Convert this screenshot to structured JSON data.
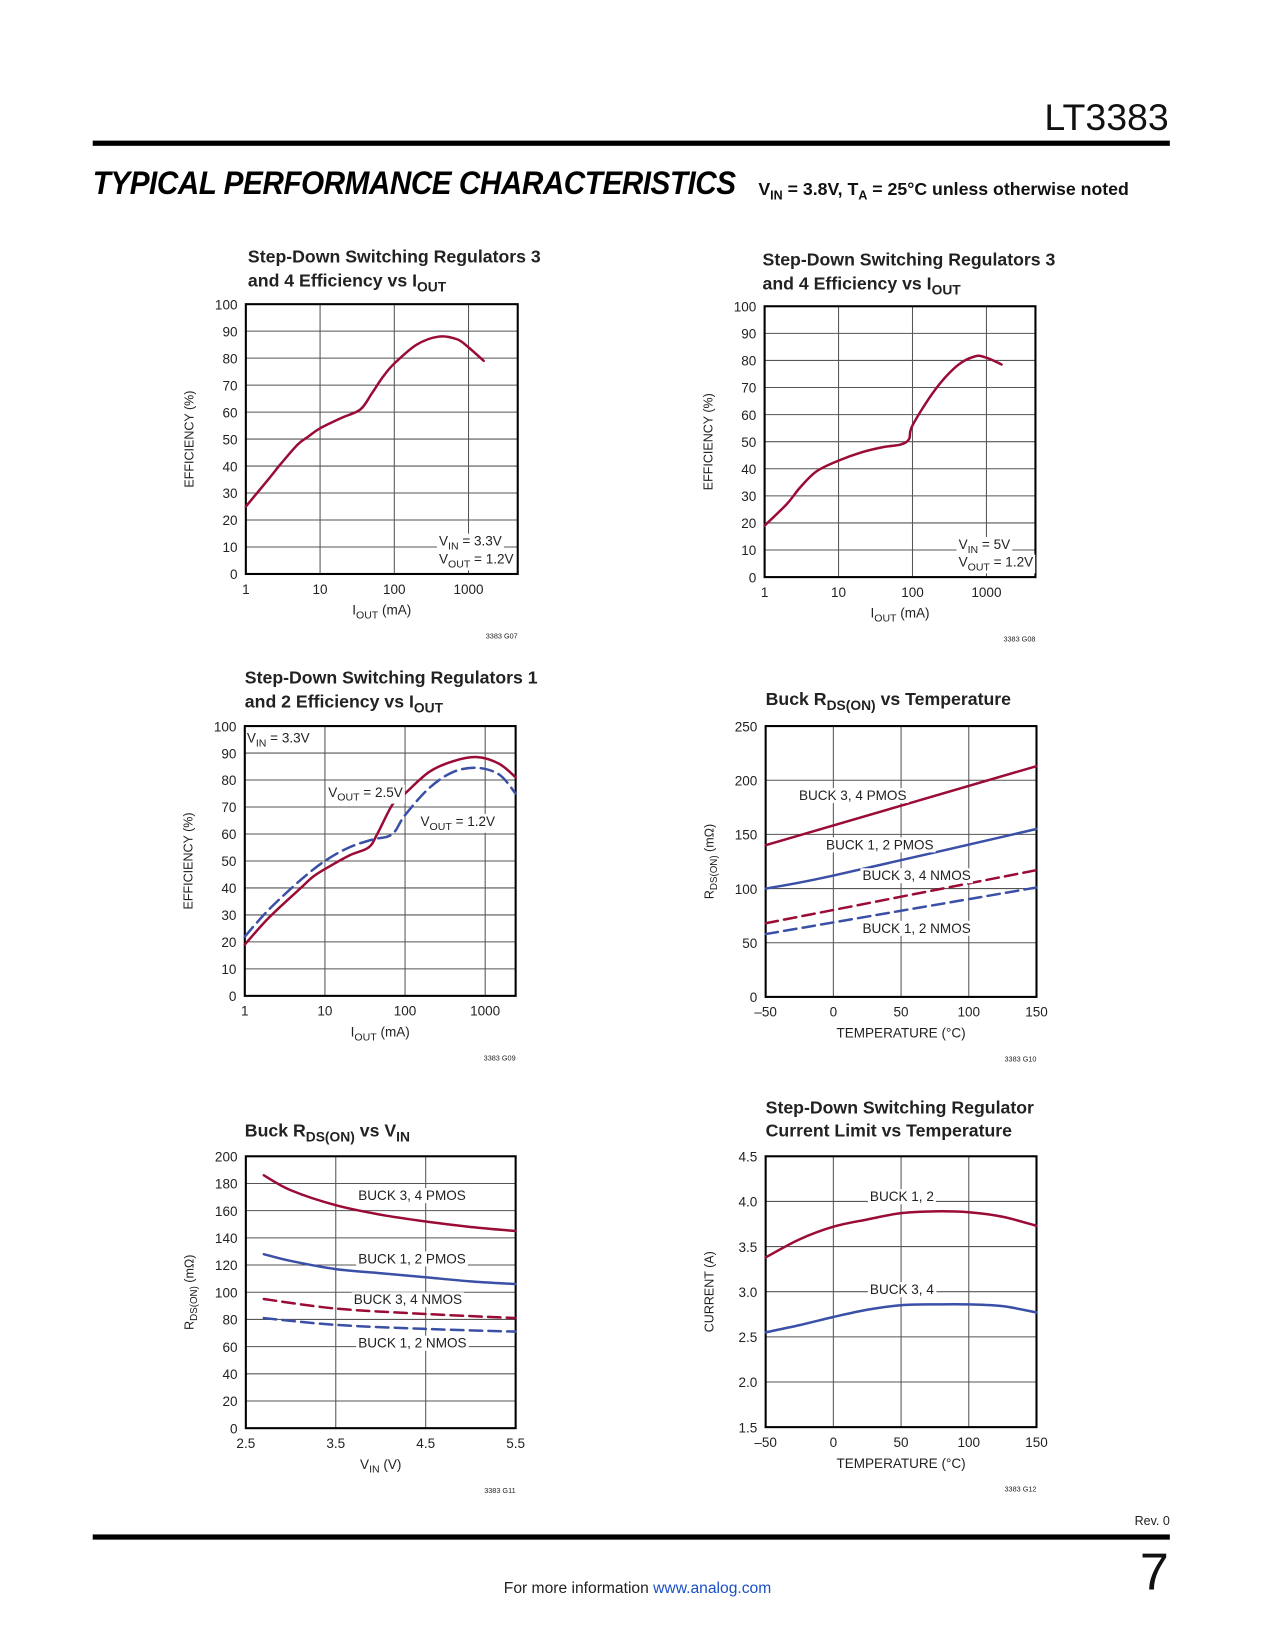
{
  "header": {
    "part_number": "LT3383",
    "section_title": "TYPICAL PERFORMANCE CHARACTERISTICS",
    "conditions": [
      [
        "V",
        "IN",
        " = 3.8V, T",
        "A",
        " = 25°C unless otherwise noted"
      ]
    ]
  },
  "footer": {
    "revision": "Rev. 0",
    "page_number": "7",
    "more_info": "For more information ",
    "link": "www.analog.com"
  },
  "colors": {
    "red": "#9a0b35",
    "blue": "#3a4fa6",
    "grid": "#555555"
  },
  "chart_data": [
    {
      "type": "line",
      "id": "3383 G07",
      "title": [
        [
          "Step-Down Switching Regulators 3"
        ],
        [
          "and 4 Efficiency vs I",
          "OUT"
        ]
      ],
      "xlabel": [
        "I",
        "OUT",
        " (mA)"
      ],
      "ylabel": [
        "EFFICIENCY (%)"
      ],
      "xscale": "log",
      "xlim": [
        1,
        4600
      ],
      "ylim": [
        0,
        100
      ],
      "xticks": [
        1,
        10,
        100,
        1000
      ],
      "yticks": [
        0,
        10,
        20,
        30,
        40,
        50,
        60,
        70,
        80,
        90,
        100
      ],
      "grid": true,
      "series": [
        {
          "name": "VOUT = 1.2V",
          "color": "red",
          "dash": false,
          "x": [
            1,
            2,
            3,
            5,
            7,
            10,
            20,
            35,
            50,
            70,
            100,
            200,
            400,
            700,
            1000,
            1600
          ],
          "y": [
            25,
            35,
            41,
            48,
            51,
            54,
            58,
            61,
            67,
            73,
            78,
            85,
            88,
            87,
            84,
            79
          ]
        }
      ],
      "annotations": [
        {
          "segs": [
            "V",
            "IN",
            " = 3.3V"
          ],
          "x": 400,
          "y": 12.4,
          "box": true
        },
        {
          "segs": [
            "V",
            "OUT",
            " = 1.2V"
          ],
          "x": 400,
          "y": 5.8,
          "box": true
        }
      ]
    },
    {
      "type": "line",
      "id": "3383 G08",
      "title": [
        [
          "Step-Down Switching Regulators 3"
        ],
        [
          "and 4 Efficiency vs I",
          "OUT"
        ]
      ],
      "xlabel": [
        "I",
        "OUT",
        " (mA)"
      ],
      "ylabel": [
        "EFFICIENCY (%)"
      ],
      "xscale": "log",
      "xlim": [
        1,
        4600
      ],
      "ylim": [
        0,
        100
      ],
      "xticks": [
        1,
        10,
        100,
        1000
      ],
      "yticks": [
        0,
        10,
        20,
        30,
        40,
        50,
        60,
        70,
        80,
        90,
        100
      ],
      "grid": true,
      "series": [
        {
          "name": "VOUT = 1.2V",
          "color": "red",
          "dash": false,
          "x": [
            1,
            2,
            3,
            5,
            10,
            20,
            40,
            70,
            90,
            100,
            200,
            400,
            700,
            1000,
            1600
          ],
          "y": [
            19,
            27,
            33,
            39,
            43,
            46,
            48,
            49,
            51,
            56,
            69,
            78,
            81.5,
            81,
            78.5
          ]
        }
      ],
      "annotations": [
        {
          "segs": [
            "V",
            "IN",
            " = 5V"
          ],
          "x": 420,
          "y": 12.3,
          "box": true
        },
        {
          "segs": [
            "V",
            "OUT",
            " = 1.2V"
          ],
          "x": 420,
          "y": 5.8,
          "box": true
        }
      ]
    },
    {
      "type": "line",
      "id": "3383 G09",
      "title": [
        [
          "Step-Down Switching Regulators 1"
        ],
        [
          "and 2 Efficiency vs I",
          "OUT"
        ]
      ],
      "xlabel": [
        "I",
        "OUT",
        " (mA)"
      ],
      "ylabel": [
        "EFFICIENCY (%)"
      ],
      "xscale": "log",
      "xlim": [
        1,
        2400
      ],
      "ylim": [
        0,
        100
      ],
      "xticks": [
        1,
        10,
        100,
        1000
      ],
      "yticks": [
        0,
        10,
        20,
        30,
        40,
        50,
        60,
        70,
        80,
        90,
        100
      ],
      "grid": true,
      "series": [
        {
          "name": "VOUT = 2.5V",
          "color": "red",
          "dash": false,
          "x": [
            1,
            2,
            5,
            7,
            10,
            20,
            35,
            45,
            70,
            100,
            200,
            400,
            800,
            1500,
            2400
          ],
          "y": [
            19,
            29,
            40,
            44,
            47,
            52,
            55,
            60,
            71,
            75,
            83,
            87,
            88.5,
            86,
            81
          ]
        },
        {
          "name": "VOUT = 1.2V",
          "color": "blue",
          "dash": true,
          "x": [
            1,
            2,
            5,
            10,
            20,
            40,
            60,
            75,
            100,
            200,
            400,
            800,
            1500,
            2400
          ],
          "y": [
            22,
            32,
            43,
            50,
            55,
            58,
            59,
            61,
            67,
            77,
            83,
            84.5,
            82,
            75
          ]
        }
      ],
      "annotations": [
        {
          "segs": [
            "V",
            "IN",
            " = 3.3V"
          ],
          "x": 1.06,
          "y": 95.8,
          "box": false
        },
        {
          "segs": [
            "V",
            "OUT",
            " = 2.5V"
          ],
          "x": 11,
          "y": 75.7,
          "box": true
        },
        {
          "segs": [
            "V",
            "OUT",
            " = 1.2V"
          ],
          "x": 156,
          "y": 64.9,
          "box": true
        }
      ]
    },
    {
      "type": "line",
      "id": "3383 G10",
      "title": [
        [
          "Buck R",
          "DS(ON)",
          " vs Temperature"
        ]
      ],
      "xlabel": [
        "TEMPERATURE (°C)"
      ],
      "ylabel": [
        "R",
        "DS(ON)",
        " (mΩ)"
      ],
      "xscale": "linear",
      "xlim": [
        -50,
        150
      ],
      "ylim": [
        0,
        250
      ],
      "xticks": [
        -50,
        0,
        50,
        100,
        150
      ],
      "xtick_labels": [
        "–50",
        "0",
        "50",
        "100",
        "150"
      ],
      "yticks": [
        0,
        50,
        100,
        150,
        200,
        250
      ],
      "grid": true,
      "series": [
        {
          "name": "BUCK 3, 4 PMOS",
          "color": "red",
          "dash": false,
          "x": [
            -50,
            150
          ],
          "y": [
            140,
            213
          ]
        },
        {
          "name": "BUCK 1, 2 PMOS",
          "color": "blue",
          "dash": false,
          "x": [
            -50,
            0,
            150
          ],
          "y": [
            100,
            112,
            155
          ]
        },
        {
          "name": "BUCK 3, 4 NMOS",
          "color": "red",
          "dash": true,
          "x": [
            -50,
            150
          ],
          "y": [
            68,
            117
          ]
        },
        {
          "name": "BUCK 1, 2 NMOS",
          "color": "blue",
          "dash": true,
          "x": [
            -50,
            150
          ],
          "y": [
            58,
            101
          ]
        }
      ],
      "annotations": [
        {
          "segs": [
            "BUCK 3, 4 PMOS"
          ],
          "x": -25.4,
          "y": 186.5,
          "box": true
        },
        {
          "segs": [
            "BUCK 1, 2 PMOS"
          ],
          "x": -5.4,
          "y": 141,
          "box": true
        },
        {
          "segs": [
            "BUCK 3, 4 NMOS"
          ],
          "x": 21.5,
          "y": 112.5,
          "box": true
        },
        {
          "segs": [
            "BUCK 1, 2 NMOS"
          ],
          "x": 21.5,
          "y": 64,
          "box": true
        }
      ]
    },
    {
      "type": "line",
      "id": "3383 G11",
      "title": [
        [
          "Buck R",
          "DS(ON)",
          " vs V",
          "IN"
        ]
      ],
      "xlabel": [
        "V",
        "IN",
        " (V)"
      ],
      "ylabel": [
        "R",
        "DS(ON)",
        " (mΩ)"
      ],
      "xscale": "linear",
      "xlim": [
        2.5,
        5.5
      ],
      "ylim": [
        0,
        200
      ],
      "xticks": [
        2.5,
        3.5,
        4.5,
        5.5
      ],
      "yticks": [
        0,
        20,
        40,
        60,
        80,
        100,
        120,
        140,
        160,
        180,
        200
      ],
      "grid": true,
      "series": [
        {
          "name": "BUCK 3, 4 PMOS",
          "color": "red",
          "dash": false,
          "x": [
            2.7,
            3.0,
            3.5,
            4.0,
            4.5,
            5.0,
            5.5
          ],
          "y": [
            186,
            175,
            164,
            157,
            152,
            148,
            145
          ]
        },
        {
          "name": "BUCK 1, 2 PMOS",
          "color": "blue",
          "dash": false,
          "x": [
            2.7,
            3.0,
            3.5,
            4.0,
            4.5,
            5.0,
            5.5
          ],
          "y": [
            128,
            123,
            117,
            114,
            111,
            108,
            106
          ]
        },
        {
          "name": "BUCK 3, 4 NMOS",
          "color": "red",
          "dash": true,
          "x": [
            2.7,
            3.5,
            4.5,
            5.5
          ],
          "y": [
            95,
            88,
            84,
            81
          ]
        },
        {
          "name": "BUCK 1, 2 NMOS",
          "color": "blue",
          "dash": true,
          "x": [
            2.7,
            3.5,
            4.5,
            5.5
          ],
          "y": [
            81,
            76,
            73,
            71
          ]
        }
      ],
      "annotations": [
        {
          "segs": [
            "BUCK 3, 4 PMOS"
          ],
          "x": 3.75,
          "y": 171.6,
          "box": true
        },
        {
          "segs": [
            "BUCK 1, 2 PMOS"
          ],
          "x": 3.75,
          "y": 125,
          "box": true
        },
        {
          "segs": [
            "BUCK 3, 4 NMOS"
          ],
          "x": 3.7,
          "y": 95,
          "box": true
        },
        {
          "segs": [
            "BUCK 1, 2 NMOS"
          ],
          "x": 3.75,
          "y": 63,
          "box": true
        }
      ]
    },
    {
      "type": "line",
      "id": "3383 G12",
      "title": [
        [
          "Step-Down Switching Regulator"
        ],
        [
          "Current Limit vs Temperature"
        ]
      ],
      "xlabel": [
        "TEMPERATURE (°C)"
      ],
      "ylabel": [
        "CURRENT (A)"
      ],
      "xscale": "linear",
      "xlim": [
        -50,
        150
      ],
      "ylim": [
        1.5,
        4.5
      ],
      "xticks": [
        -50,
        0,
        50,
        100,
        150
      ],
      "xtick_labels": [
        "–50",
        "0",
        "50",
        "100",
        "150"
      ],
      "yticks": [
        1.5,
        2.0,
        2.5,
        3.0,
        3.5,
        4.0,
        4.5
      ],
      "ytick_labels": [
        "1.5",
        "2.0",
        "2.5",
        "3.0",
        "3.5",
        "4.0",
        "4.5"
      ],
      "grid": true,
      "series": [
        {
          "name": "BUCK 1, 2",
          "color": "red",
          "dash": false,
          "x": [
            -50,
            -25,
            0,
            25,
            50,
            75,
            100,
            125,
            150
          ],
          "y": [
            3.38,
            3.58,
            3.72,
            3.8,
            3.87,
            3.89,
            3.88,
            3.83,
            3.73
          ]
        },
        {
          "name": "BUCK 3, 4",
          "color": "blue",
          "dash": false,
          "x": [
            -50,
            -25,
            0,
            25,
            50,
            75,
            100,
            125,
            150
          ],
          "y": [
            2.55,
            2.63,
            2.72,
            2.8,
            2.85,
            2.86,
            2.86,
            2.84,
            2.77
          ]
        }
      ],
      "annotations": [
        {
          "segs": [
            "BUCK 1, 2"
          ],
          "x": 27,
          "y": 4.06,
          "box": true
        },
        {
          "segs": [
            "BUCK 3, 4"
          ],
          "x": 27,
          "y": 3.03,
          "box": true
        }
      ]
    }
  ]
}
